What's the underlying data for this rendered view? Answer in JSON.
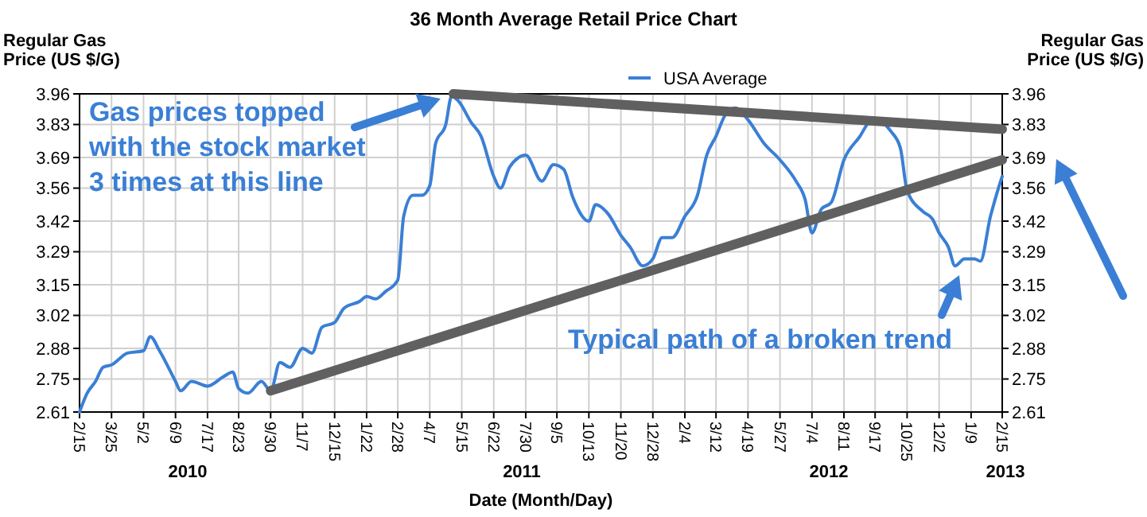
{
  "chart_data": {
    "type": "line",
    "title": "36 Month Average Retail Price Chart",
    "xlabel": "Date (Month/Day)",
    "ylabel": "Regular Gas Price (US $/G)",
    "y2label": "Regular Gas Price (US $/G)",
    "xlim": [
      "2010-02-15",
      "2013-02-15"
    ],
    "xticks": [
      {
        "value": "2010-02-15",
        "label": "2/15"
      },
      {
        "value": "2010-03-25",
        "label": "3/25"
      },
      {
        "value": "2010-05-02",
        "label": "5/2"
      },
      {
        "value": "2010-06-09",
        "label": "6/9"
      },
      {
        "value": "2010-07-17",
        "label": "7/17"
      },
      {
        "value": "2010-08-23",
        "label": "8/23"
      },
      {
        "value": "2010-09-30",
        "label": "9/30"
      },
      {
        "value": "2010-11-07",
        "label": "11/7"
      },
      {
        "value": "2010-12-15",
        "label": "12/15"
      },
      {
        "value": "2011-01-22",
        "label": "1/22"
      },
      {
        "value": "2011-02-28",
        "label": "2/28"
      },
      {
        "value": "2011-04-07",
        "label": "4/7"
      },
      {
        "value": "2011-05-15",
        "label": "5/15"
      },
      {
        "value": "2011-06-22",
        "label": "6/22"
      },
      {
        "value": "2011-07-30",
        "label": "7/30"
      },
      {
        "value": "2011-09-05",
        "label": "9/5"
      },
      {
        "value": "2011-10-13",
        "label": "10/13"
      },
      {
        "value": "2011-11-20",
        "label": "11/20"
      },
      {
        "value": "2011-12-28",
        "label": "12/28"
      },
      {
        "value": "2012-02-04",
        "label": "2/4"
      },
      {
        "value": "2012-03-12",
        "label": "3/12"
      },
      {
        "value": "2012-04-19",
        "label": "4/19"
      },
      {
        "value": "2012-05-27",
        "label": "5/27"
      },
      {
        "value": "2012-07-04",
        "label": "7/4"
      },
      {
        "value": "2012-08-11",
        "label": "8/11"
      },
      {
        "value": "2012-09-17",
        "label": "9/17"
      },
      {
        "value": "2012-10-25",
        "label": "10/25"
      },
      {
        "value": "2012-12-02",
        "label": "12/2"
      },
      {
        "value": "2013-01-09",
        "label": "1/9"
      },
      {
        "value": "2013-02-15",
        "label": "2/15"
      }
    ],
    "ylim": [
      2.61,
      3.96
    ],
    "yticks": [
      2.61,
      2.75,
      2.88,
      3.02,
      3.15,
      3.29,
      3.42,
      3.56,
      3.69,
      3.83,
      3.96
    ],
    "y2lim": [
      2.61,
      3.96
    ],
    "y2ticks": [
      2.61,
      2.75,
      2.88,
      3.02,
      3.15,
      3.29,
      3.42,
      3.56,
      3.69,
      3.83,
      3.96
    ],
    "grid": true,
    "legend": "top",
    "line_style": "solid",
    "marker": "none",
    "series": [
      {
        "name": "USA Average",
        "color": "#3a7fd5",
        "x": [
          "2010-02-15",
          "2010-02-24",
          "2010-03-06",
          "2010-03-15",
          "2010-03-25",
          "2010-04-13",
          "2010-05-02",
          "2010-05-10",
          "2010-05-21",
          "2010-06-09",
          "2010-06-15",
          "2010-06-28",
          "2010-07-17",
          "2010-08-05",
          "2010-08-16",
          "2010-08-23",
          "2010-09-03",
          "2010-09-19",
          "2010-09-30",
          "2010-10-11",
          "2010-10-23",
          "2010-11-07",
          "2010-11-18",
          "2010-11-30",
          "2010-12-15",
          "2010-12-26",
          "2011-01-14",
          "2011-01-22",
          "2011-02-02",
          "2011-02-13",
          "2011-02-28",
          "2011-03-07",
          "2011-03-18",
          "2011-03-29",
          "2011-04-07",
          "2011-04-14",
          "2011-04-26",
          "2011-05-03",
          "2011-05-11",
          "2011-05-26",
          "2011-06-07",
          "2011-06-22",
          "2011-06-30",
          "2011-07-11",
          "2011-07-30",
          "2011-08-18",
          "2011-09-01",
          "2011-09-13",
          "2011-09-24",
          "2011-10-13",
          "2011-10-21",
          "2011-11-05",
          "2011-11-20",
          "2011-12-01",
          "2011-12-16",
          "2011-12-28",
          "2012-01-08",
          "2012-01-20",
          "2012-02-04",
          "2012-02-19",
          "2012-03-01",
          "2012-03-12",
          "2012-03-23",
          "2012-04-04",
          "2012-04-19",
          "2012-05-08",
          "2012-05-27",
          "2012-06-15",
          "2012-06-26",
          "2012-07-04",
          "2012-07-15",
          "2012-07-27",
          "2012-08-11",
          "2012-08-30",
          "2012-09-10",
          "2012-09-17",
          "2012-10-06",
          "2012-10-17",
          "2012-10-25",
          "2012-11-13",
          "2012-11-24",
          "2012-12-02",
          "2012-12-13",
          "2012-12-21",
          "2013-01-01",
          "2013-01-13",
          "2013-01-20",
          "2013-02-01",
          "2013-02-08",
          "2013-02-15"
        ],
        "values": [
          2.61,
          2.69,
          2.74,
          2.8,
          2.81,
          2.86,
          2.87,
          2.93,
          2.87,
          2.74,
          2.7,
          2.74,
          2.72,
          2.76,
          2.78,
          2.71,
          2.69,
          2.74,
          2.7,
          2.82,
          2.8,
          2.88,
          2.86,
          2.97,
          2.99,
          3.05,
          3.08,
          3.1,
          3.09,
          3.12,
          3.17,
          3.44,
          3.53,
          3.53,
          3.57,
          3.75,
          3.83,
          3.95,
          3.93,
          3.84,
          3.78,
          3.61,
          3.56,
          3.65,
          3.7,
          3.59,
          3.66,
          3.64,
          3.52,
          3.42,
          3.49,
          3.45,
          3.36,
          3.31,
          3.23,
          3.26,
          3.35,
          3.35,
          3.44,
          3.53,
          3.7,
          3.78,
          3.87,
          3.9,
          3.85,
          3.75,
          3.68,
          3.59,
          3.51,
          3.37,
          3.47,
          3.5,
          3.68,
          3.78,
          3.84,
          3.85,
          3.8,
          3.73,
          3.55,
          3.46,
          3.43,
          3.37,
          3.31,
          3.23,
          3.26,
          3.26,
          3.25,
          3.44,
          3.53,
          3.61
        ]
      },
      {
        "type": "line",
        "color": "#606060",
        "x": [
          "2011-05-05",
          "2013-02-15"
        ],
        "values": [
          3.96,
          3.81
        ]
      },
      {
        "type": "line",
        "color": "#606060",
        "x": [
          "2010-09-30",
          "2013-02-15"
        ],
        "values": [
          2.7,
          3.68
        ]
      }
    ],
    "annotations": [
      "2010",
      "2011",
      "2012",
      "2013",
      "Gas prices topped with the stock market 3 times at this line",
      "Typical path of a broken trend"
    ]
  }
}
